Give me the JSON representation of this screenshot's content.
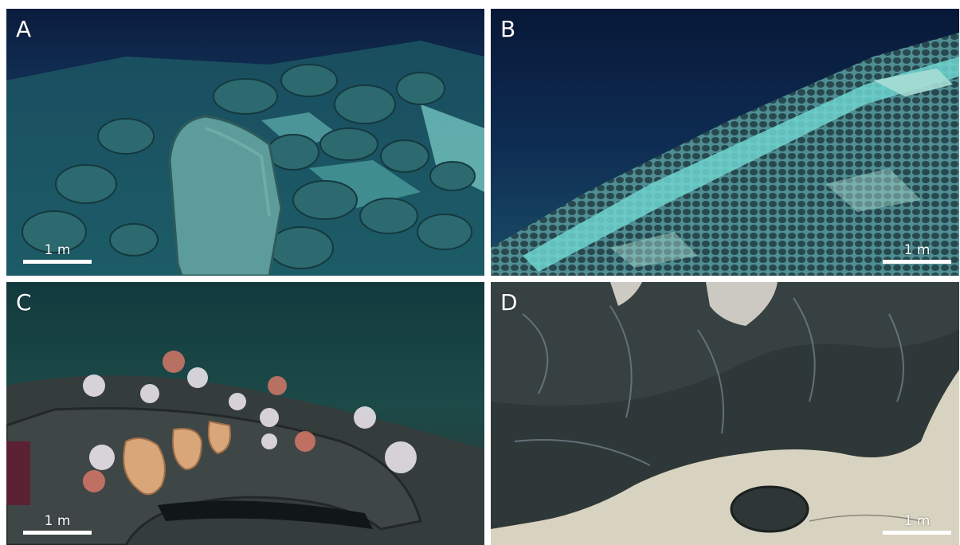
{
  "panels": [
    {
      "label": "A",
      "scale_label": "1 m",
      "scene": "seafloor-boulders"
    },
    {
      "label": "B",
      "scale_label": "1 m",
      "scene": "nodule-field"
    },
    {
      "label": "C",
      "scale_label": "1 m",
      "scene": "coral-sponge-outcrop"
    },
    {
      "label": "D",
      "scale_label": "1 m",
      "scene": "crust-pavement"
    }
  ],
  "colors": {
    "deep_water": "#0a1f45",
    "teal_sediment": "#5fc3c0",
    "dark_rock": "#2f3a3a",
    "pale_sediment": "#d8d3c0",
    "sponge": "#d9a67a"
  }
}
